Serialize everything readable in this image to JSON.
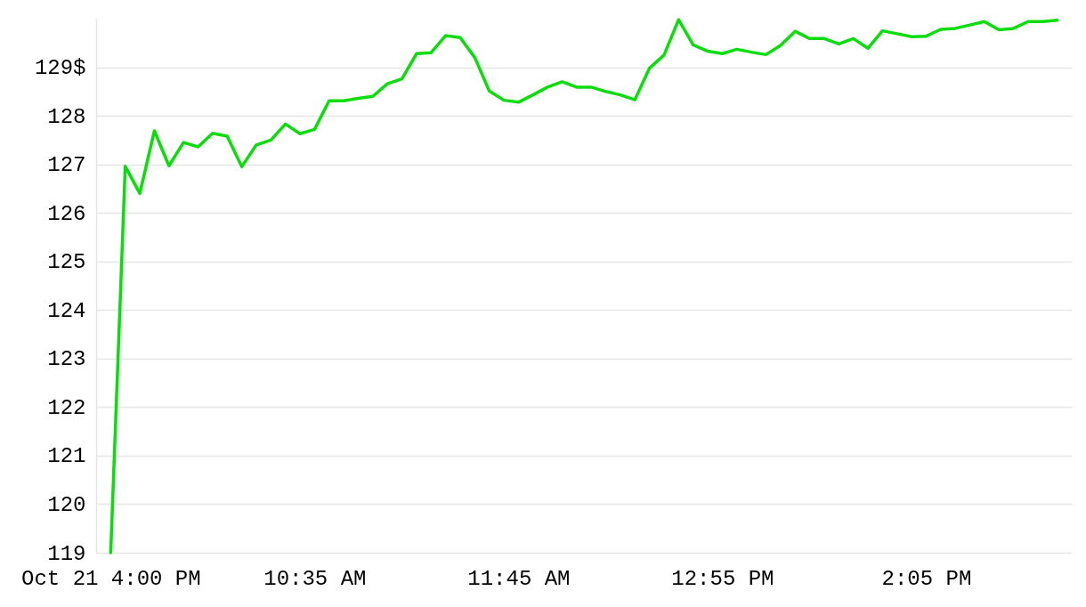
{
  "chart_data": {
    "type": "line",
    "categories": [
      "Oct 21 4:00 PM",
      null,
      null,
      null,
      null,
      null,
      null,
      null,
      null,
      null,
      null,
      null,
      null,
      null,
      "10:35 AM",
      null,
      null,
      null,
      null,
      null,
      null,
      null,
      null,
      null,
      null,
      null,
      null,
      null,
      "11:45 AM",
      null,
      null,
      null,
      null,
      null,
      null,
      null,
      null,
      null,
      null,
      null,
      null,
      null,
      "12:55 PM",
      null,
      null,
      null,
      null,
      null,
      null,
      null,
      null,
      null,
      null,
      null,
      null,
      null,
      "2:05 PM",
      null,
      null,
      null,
      null,
      null,
      null,
      null,
      null,
      null
    ],
    "series": [
      {
        "color": "#0bdc0b",
        "values": [
          119.0,
          126.96,
          126.4,
          127.69,
          126.97,
          127.45,
          127.36,
          127.64,
          127.58,
          126.95,
          127.4,
          127.5,
          127.83,
          127.63,
          127.72,
          128.31,
          128.31,
          128.36,
          128.4,
          128.66,
          128.76,
          129.28,
          129.3,
          129.65,
          129.61,
          129.2,
          128.51,
          128.32,
          128.28,
          128.43,
          128.59,
          128.7,
          128.59,
          128.59,
          128.5,
          128.43,
          128.33,
          128.98,
          129.25,
          129.98,
          129.46,
          129.33,
          129.28,
          129.37,
          129.31,
          129.26,
          129.45,
          129.74,
          129.59,
          129.59,
          129.48,
          129.59,
          129.39,
          129.75,
          129.69,
          129.63,
          129.64,
          129.78,
          129.8,
          129.87,
          129.94,
          129.77,
          129.8,
          129.94,
          129.94,
          129.97
        ]
      }
    ],
    "yticks": [
      119,
      120,
      121,
      122,
      123,
      124,
      125,
      126,
      127,
      128,
      {
        "value": 129,
        "label": "129$"
      }
    ],
    "ylim": [
      119,
      130
    ],
    "grid": "y",
    "marker": "none",
    "line_style": "solid"
  }
}
